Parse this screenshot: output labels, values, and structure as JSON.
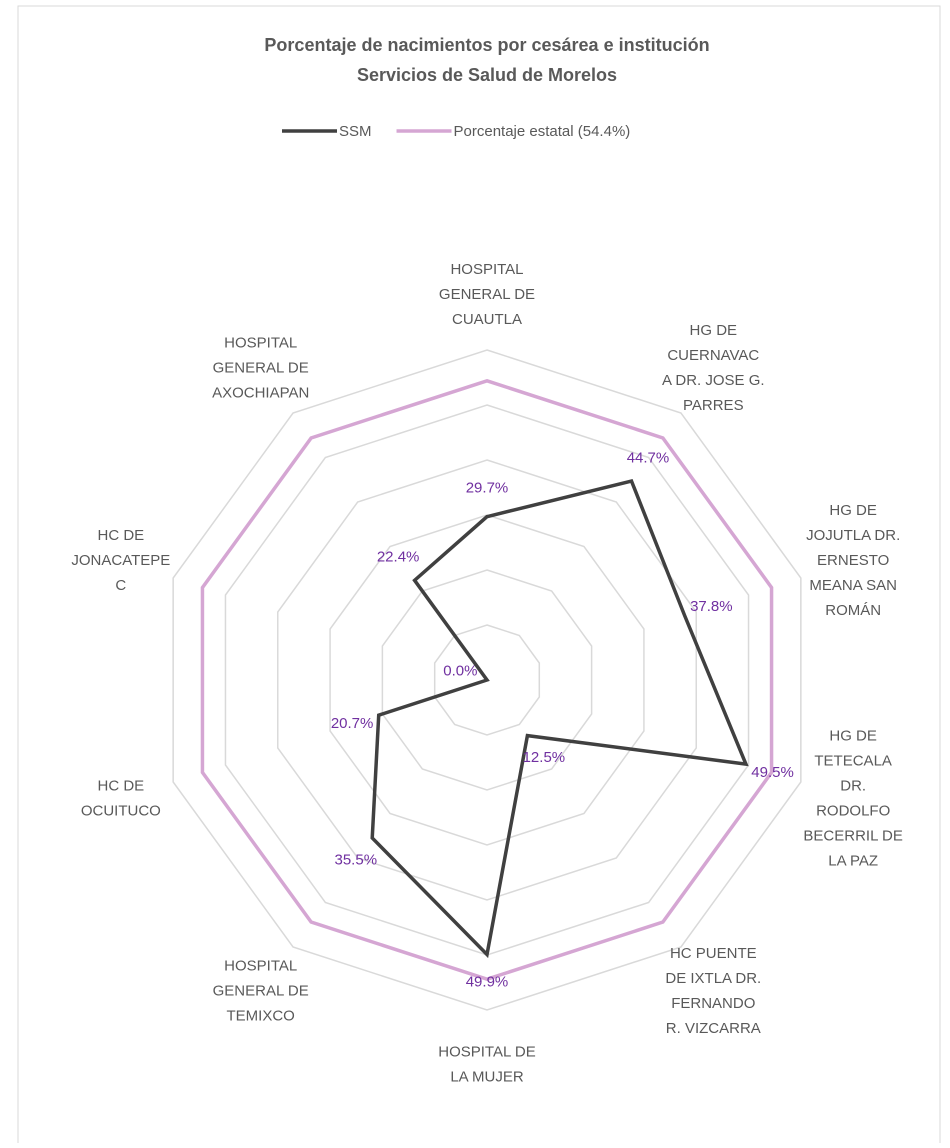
{
  "chart_data": {
    "type": "radar",
    "title": "Porcentaje de nacimientos por cesárea e institución",
    "subtitle": "Servicios de Salud de Morelos",
    "categories": [
      [
        "HOSPITAL",
        "GENERAL DE",
        "CUAUTLA"
      ],
      [
        "HG DE",
        "CUERNAVAC",
        "A DR. JOSE G.",
        "PARRES"
      ],
      [
        "HG DE",
        "JOJUTLA DR.",
        "ERNESTO",
        "MEANA SAN",
        "ROMÁN"
      ],
      [
        "HG DE",
        "TETECALA",
        "DR.",
        "RODOLFO",
        "BECERRIL DE",
        "LA PAZ"
      ],
      [
        "HC PUENTE",
        "DE IXTLA DR.",
        "FERNANDO",
        "R. VIZCARRA"
      ],
      [
        "HOSPITAL DE",
        "LA MUJER"
      ],
      [
        "HOSPITAL",
        "GENERAL DE",
        "TEMIXCO"
      ],
      [
        "HC DE",
        "OCUITUCO"
      ],
      [
        "HC DE",
        "JONACATEPE",
        "C"
      ],
      [
        "HOSPITAL",
        "GENERAL DE",
        "AXOCHIAPAN"
      ]
    ],
    "series": [
      {
        "name": "SSM",
        "color": "#404040",
        "values": [
          29.7,
          44.7,
          37.8,
          49.5,
          12.5,
          49.9,
          35.5,
          20.7,
          0.0,
          22.4
        ],
        "value_labels": [
          "29.7%",
          "44.7%",
          "37.8%",
          "49.5%",
          "12.5%",
          "49.9%",
          "35.5%",
          "20.7%",
          "0.0%",
          "22.4%"
        ]
      },
      {
        "name": "Porcentaje estatal (54.4%)",
        "color": "#d5a6d3",
        "values": [
          54.4,
          54.4,
          54.4,
          54.4,
          54.4,
          54.4,
          54.4,
          54.4,
          54.4,
          54.4
        ]
      }
    ],
    "label_color": "#7030a0",
    "rlim": [
      0,
      60
    ],
    "rticks": [
      0,
      10,
      20,
      30,
      40,
      50,
      60
    ],
    "grid": true
  }
}
